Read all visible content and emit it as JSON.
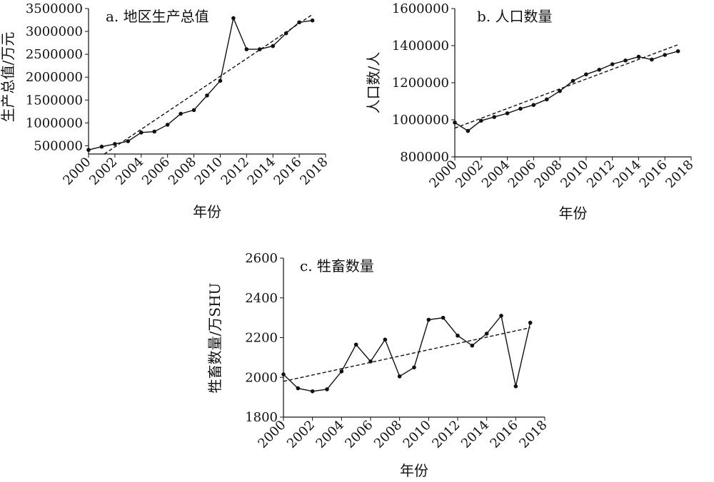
{
  "chart_data": [
    {
      "type": "line",
      "title": "a. 地区生产总值",
      "xlabel": "年份",
      "ylabel": "生产总值/万元",
      "xlim": [
        2000,
        2018
      ],
      "ylim": [
        320000,
        3500000
      ],
      "xticks": [
        2000,
        2002,
        2004,
        2006,
        2008,
        2010,
        2012,
        2014,
        2016,
        2018
      ],
      "yticks": [
        500000,
        1000000,
        1500000,
        2000000,
        2500000,
        3000000,
        3500000
      ],
      "x": [
        2000,
        2001,
        2002,
        2003,
        2004,
        2005,
        2006,
        2007,
        2008,
        2009,
        2010,
        2011,
        2012,
        2013,
        2014,
        2015,
        2016,
        2017
      ],
      "series": [
        {
          "values": [
            410000,
            480000,
            540000,
            600000,
            790000,
            810000,
            960000,
            1200000,
            1280000,
            1600000,
            1920000,
            3290000,
            2610000,
            2610000,
            2680000,
            2960000,
            3200000,
            3240000
          ]
        }
      ],
      "trend": {
        "x": [
          2001.2,
          2017
        ],
        "y": [
          320000,
          3370000
        ]
      }
    },
    {
      "type": "line",
      "title": "b. 人口数量",
      "xlabel": "年份",
      "ylabel": "人口数/人",
      "xlim": [
        2000,
        2018
      ],
      "ylim": [
        800000,
        1600000
      ],
      "xticks": [
        2000,
        2002,
        2004,
        2006,
        2008,
        2010,
        2012,
        2014,
        2016,
        2018
      ],
      "yticks": [
        800000,
        1000000,
        1200000,
        1400000,
        1600000
      ],
      "x": [
        2000,
        2001,
        2002,
        2003,
        2004,
        2005,
        2006,
        2007,
        2008,
        2009,
        2010,
        2011,
        2012,
        2013,
        2014,
        2015,
        2016,
        2017
      ],
      "series": [
        {
          "values": [
            985000,
            940000,
            995000,
            1015000,
            1035000,
            1060000,
            1080000,
            1110000,
            1155000,
            1210000,
            1245000,
            1270000,
            1300000,
            1320000,
            1340000,
            1325000,
            1350000,
            1370000
          ]
        }
      ],
      "trend": {
        "x": [
          2000,
          2017
        ],
        "y": [
          955000,
          1405000
        ]
      }
    },
    {
      "type": "line",
      "title": "c. 牲畜数量",
      "xlabel": "年份",
      "ylabel": "牲畜数量/万SHU",
      "xlim": [
        2000,
        2018
      ],
      "ylim": [
        1800,
        2600
      ],
      "xticks": [
        2000,
        2002,
        2004,
        2006,
        2008,
        2010,
        2012,
        2014,
        2016,
        2018
      ],
      "yticks": [
        1800,
        2000,
        2200,
        2400,
        2600
      ],
      "x": [
        2000,
        2001,
        2002,
        2003,
        2004,
        2005,
        2006,
        2007,
        2008,
        2009,
        2010,
        2011,
        2012,
        2013,
        2014,
        2015,
        2016,
        2017
      ],
      "series": [
        {
          "values": [
            2015,
            1945,
            1930,
            1940,
            2030,
            2165,
            2080,
            2190,
            2005,
            2050,
            2290,
            2300,
            2210,
            2160,
            2220,
            2310,
            1955,
            2275
          ]
        }
      ],
      "trend": {
        "x": [
          2000,
          2017
        ],
        "y": [
          1980,
          2250
        ]
      }
    }
  ],
  "style": {
    "line_color": "#111111",
    "trend_color": "#111111"
  }
}
